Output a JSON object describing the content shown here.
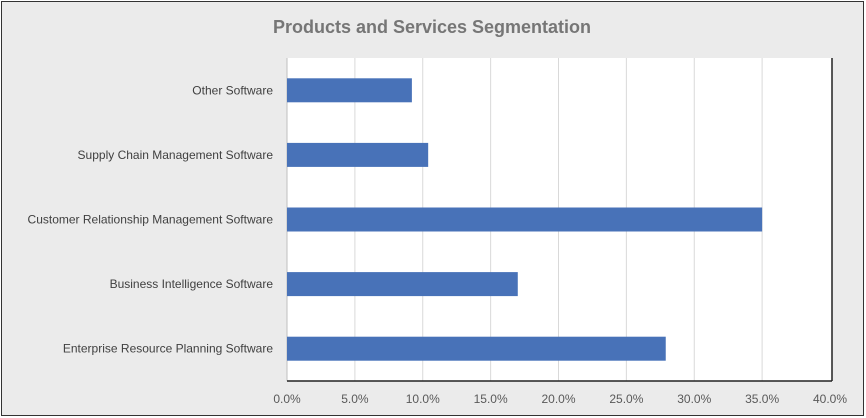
{
  "chart_data": {
    "type": "bar",
    "orientation": "horizontal",
    "title": "Products and Services Segmentation",
    "categories": [
      "Other Software",
      "Supply Chain Management Software",
      "Customer Relationship Management Software",
      "Business Intelligence Software",
      "Enterprise Resource Planning Software"
    ],
    "values": [
      9.2,
      10.4,
      35.0,
      17.0,
      27.9
    ],
    "xlim": [
      0,
      40
    ],
    "xticks": [
      "0.0%",
      "5.0%",
      "10.0%",
      "15.0%",
      "20.0%",
      "25.0%",
      "30.0%",
      "35.0%",
      "40.0%"
    ],
    "xlabel": "",
    "ylabel": "",
    "grid": "vertical",
    "bar_color": "#4872b8",
    "background_color": "#ebebeb",
    "plot_background": "#ffffff"
  }
}
